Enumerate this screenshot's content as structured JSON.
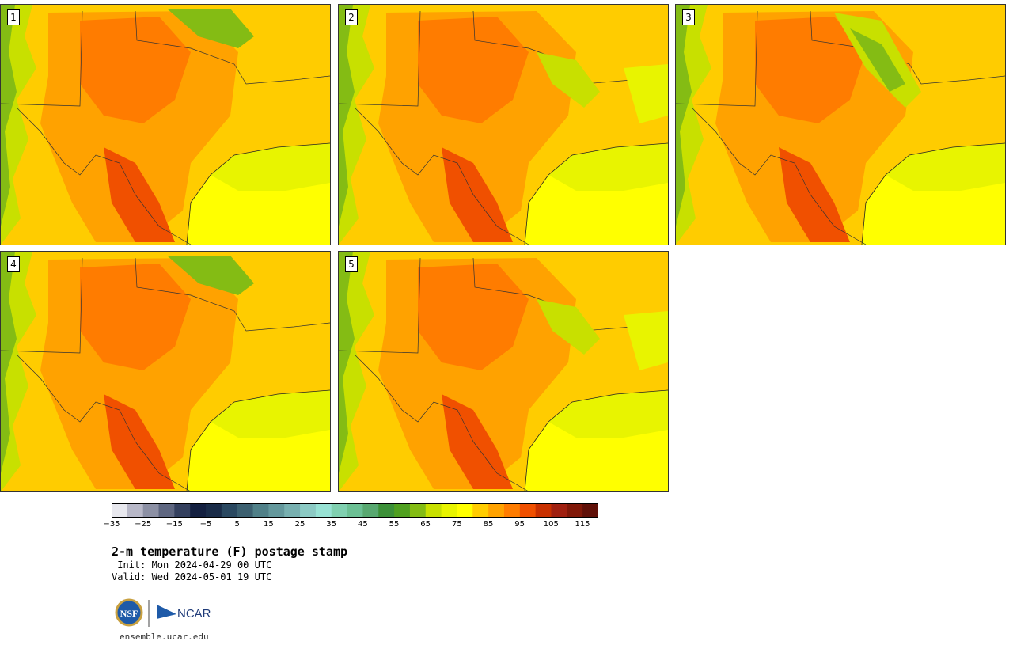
{
  "panels": [
    {
      "label": "1"
    },
    {
      "label": "2"
    },
    {
      "label": "3"
    },
    {
      "label": "4"
    },
    {
      "label": "5"
    }
  ],
  "colorbar": {
    "colors": [
      "#e8e8ee",
      "#b8b8c8",
      "#8c90a4",
      "#5e6680",
      "#34405e",
      "#142040",
      "#1a2c48",
      "#2a4860",
      "#3c6070",
      "#508088",
      "#64989c",
      "#78b0b0",
      "#8ccac4",
      "#98e2d4",
      "#80d0b0",
      "#6cc094",
      "#58a870",
      "#3c9038",
      "#50a020",
      "#84bc14",
      "#c8e000",
      "#e8f400",
      "#ffff00",
      "#ffcc00",
      "#ffa200",
      "#ff7c00",
      "#f05000",
      "#c83000",
      "#a02010",
      "#801808",
      "#601008"
    ],
    "tick_labels": [
      "−35",
      "−25",
      "−15",
      "−5",
      "5",
      "15",
      "25",
      "35",
      "45",
      "55",
      "65",
      "75",
      "85",
      "95",
      "105",
      "115"
    ]
  },
  "title": "2-m temperature (F) postage stamp",
  "init": " Init: Mon 2024-04-29 00 UTC",
  "valid": "Valid: Wed 2024-05-01 19 UTC",
  "logos": {
    "nsf": "NSF",
    "ncar": "NCAR"
  },
  "site": "ensemble.ucar.edu"
}
